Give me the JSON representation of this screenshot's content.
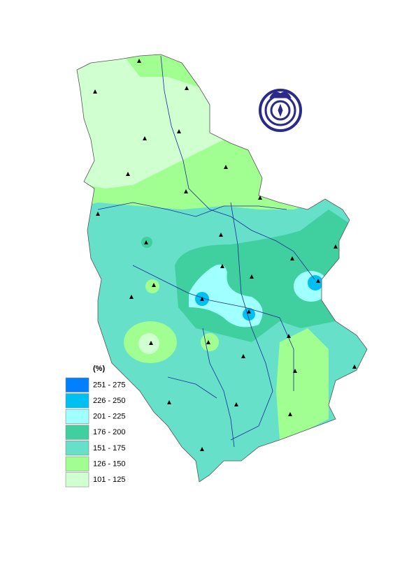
{
  "legend": {
    "title": "(%)",
    "items": [
      {
        "label": "251 - 275",
        "color": "#0080ff"
      },
      {
        "label": "226 - 250",
        "color": "#00c0f0"
      },
      {
        "label": "201 - 225",
        "color": "#a0ffff"
      },
      {
        "label": "176 - 200",
        "color": "#40d0a0"
      },
      {
        "label": "151 - 175",
        "color": "#66e0c8"
      },
      {
        "label": "126 - 150",
        "color": "#a0ff90"
      },
      {
        "label": "101 - 125",
        "color": "#d0ffd0"
      }
    ]
  }
}
